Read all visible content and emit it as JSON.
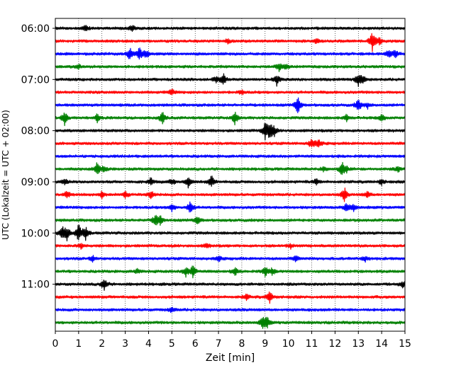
{
  "chart_data": {
    "type": "line",
    "title": "",
    "xlabel": "Zeit  [min]",
    "ylabel": "UTC (Lokalzeit = UTC + 02:00)",
    "xlim": [
      0,
      15
    ],
    "x_ticks": [
      0,
      1,
      2,
      3,
      4,
      5,
      6,
      7,
      8,
      9,
      10,
      11,
      12,
      13,
      14,
      15
    ],
    "x_tick_labels": [
      "0",
      "1",
      "2",
      "3",
      "4",
      "5",
      "6",
      "7",
      "8",
      "9",
      "10",
      "11",
      "12",
      "13",
      "14",
      "15"
    ],
    "grid": "vertical dotted",
    "trace_colors": [
      "#000000",
      "#ff0000",
      "#0000ff",
      "#008000"
    ],
    "traces": [
      {
        "time": "06:00",
        "color": "#000000",
        "events": [
          [
            1.3,
            0.35
          ],
          [
            3.3,
            0.45
          ]
        ]
      },
      {
        "time": "06:15",
        "color": "#ff0000",
        "events": [
          [
            7.4,
            0.25
          ],
          [
            11.2,
            0.25
          ],
          [
            13.6,
            1.3
          ],
          [
            13.9,
            0.5
          ]
        ]
      },
      {
        "time": "06:30",
        "color": "#0000ff",
        "events": [
          [
            3.2,
            0.9
          ],
          [
            3.6,
            0.9
          ],
          [
            3.9,
            0.5
          ],
          [
            14.3,
            0.6
          ],
          [
            14.6,
            0.5
          ]
        ]
      },
      {
        "time": "06:45",
        "color": "#008000",
        "events": [
          [
            1.0,
            0.3
          ],
          [
            9.6,
            0.6
          ],
          [
            9.9,
            0.35
          ]
        ]
      },
      {
        "time": "07:00",
        "color": "#000000",
        "events": [
          [
            6.9,
            0.4
          ],
          [
            7.2,
            0.8
          ],
          [
            9.5,
            0.8
          ],
          [
            13.0,
            0.8
          ],
          [
            13.2,
            0.5
          ]
        ]
      },
      {
        "time": "07:15",
        "color": "#ff0000",
        "events": [
          [
            5.0,
            0.4
          ],
          [
            8.0,
            0.3
          ]
        ]
      },
      {
        "time": "07:30",
        "color": "#0000ff",
        "events": [
          [
            10.4,
            1.2
          ],
          [
            13.0,
            0.8
          ],
          [
            13.4,
            0.4
          ]
        ]
      },
      {
        "time": "07:45",
        "color": "#008000",
        "events": [
          [
            0.4,
            0.9
          ],
          [
            1.8,
            0.5
          ],
          [
            4.6,
            0.8
          ],
          [
            7.7,
            0.9
          ],
          [
            12.5,
            0.4
          ],
          [
            14.0,
            0.5
          ]
        ]
      },
      {
        "time": "08:00",
        "color": "#000000",
        "events": [
          [
            9.0,
            1.0
          ],
          [
            9.2,
            1.3
          ],
          [
            9.4,
            0.5
          ]
        ]
      },
      {
        "time": "08:15",
        "color": "#ff0000",
        "events": [
          [
            11.0,
            0.7
          ],
          [
            11.3,
            0.6
          ]
        ]
      },
      {
        "time": "08:30",
        "color": "#0000ff",
        "events": []
      },
      {
        "time": "08:45",
        "color": "#008000",
        "events": [
          [
            1.8,
            0.9
          ],
          [
            2.1,
            0.4
          ],
          [
            11.5,
            0.3
          ],
          [
            12.3,
            0.9
          ],
          [
            12.5,
            0.4
          ],
          [
            14.7,
            0.35
          ]
        ]
      },
      {
        "time": "09:00",
        "color": "#000000",
        "events": [
          [
            0.4,
            0.4
          ],
          [
            4.1,
            0.5
          ],
          [
            5.0,
            0.4
          ],
          [
            5.7,
            0.8
          ],
          [
            6.7,
            0.8
          ],
          [
            11.2,
            0.4
          ],
          [
            14.0,
            0.35
          ]
        ]
      },
      {
        "time": "09:15",
        "color": "#ff0000",
        "events": [
          [
            0.5,
            0.6
          ],
          [
            2.0,
            0.4
          ],
          [
            3.0,
            0.4
          ],
          [
            4.1,
            0.6
          ],
          [
            12.4,
            0.9
          ],
          [
            13.4,
            0.4
          ]
        ]
      },
      {
        "time": "09:30",
        "color": "#0000ff",
        "events": [
          [
            5.0,
            0.5
          ],
          [
            5.8,
            0.9
          ],
          [
            12.5,
            0.6
          ],
          [
            12.8,
            0.45
          ]
        ]
      },
      {
        "time": "09:45",
        "color": "#008000",
        "events": [
          [
            4.3,
            0.8
          ],
          [
            4.5,
            0.5
          ],
          [
            6.1,
            0.5
          ]
        ]
      },
      {
        "time": "10:00",
        "color": "#000000",
        "events": [
          [
            0.3,
            0.8
          ],
          [
            0.5,
            0.9
          ],
          [
            1.0,
            1.2
          ],
          [
            1.3,
            1.0
          ]
        ]
      },
      {
        "time": "10:15",
        "color": "#ff0000",
        "events": [
          [
            1.1,
            0.4
          ],
          [
            6.5,
            0.3
          ],
          [
            10.1,
            0.25
          ]
        ]
      },
      {
        "time": "10:30",
        "color": "#0000ff",
        "events": [
          [
            1.6,
            0.35
          ],
          [
            7.0,
            0.4
          ],
          [
            10.3,
            0.35
          ],
          [
            13.3,
            0.3
          ]
        ]
      },
      {
        "time": "10:45",
        "color": "#008000",
        "events": [
          [
            3.5,
            0.3
          ],
          [
            5.6,
            0.6
          ],
          [
            5.9,
            0.9
          ],
          [
            7.7,
            0.5
          ],
          [
            9.0,
            0.6
          ],
          [
            9.3,
            0.5
          ]
        ]
      },
      {
        "time": "11:00",
        "color": "#000000",
        "events": [
          [
            2.1,
            0.9
          ],
          [
            14.9,
            0.4
          ]
        ]
      },
      {
        "time": "11:15",
        "color": "#ff0000",
        "events": [
          [
            8.2,
            0.35
          ],
          [
            9.2,
            0.8
          ]
        ]
      },
      {
        "time": "11:30",
        "color": "#0000ff",
        "events": [
          [
            5.0,
            0.35
          ]
        ]
      },
      {
        "time": "11:45",
        "color": "#008000",
        "events": [
          [
            8.9,
            0.9
          ],
          [
            9.1,
            0.6
          ]
        ]
      }
    ],
    "y_tick_labels": [
      {
        "label": "06:00",
        "trace_index": 0
      },
      {
        "label": "07:00",
        "trace_index": 4
      },
      {
        "label": "08:00",
        "trace_index": 8
      },
      {
        "label": "09:00",
        "trace_index": 12
      },
      {
        "label": "10:00",
        "trace_index": 16
      },
      {
        "label": "11:00",
        "trace_index": 20
      }
    ]
  }
}
